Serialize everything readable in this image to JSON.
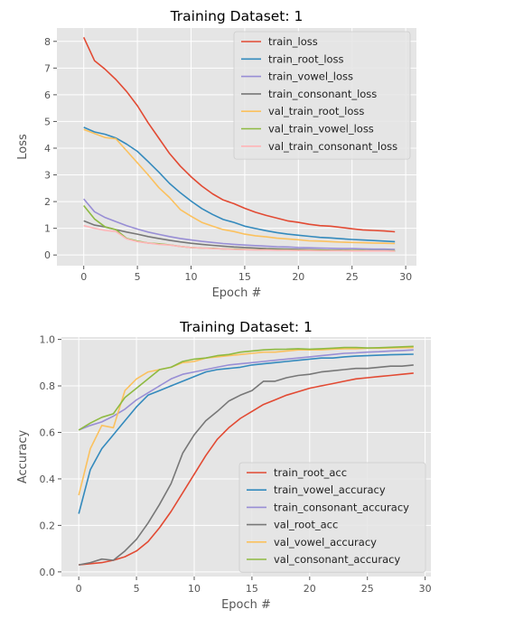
{
  "chart_data": [
    {
      "type": "line",
      "title": "Training Dataset: 1",
      "xlabel": "Epoch #",
      "ylabel": "Loss",
      "xlim": [
        -2.5,
        31
      ],
      "ylim": [
        -0.4,
        8.5
      ],
      "xticks": [
        0,
        5,
        10,
        15,
        20,
        25,
        30
      ],
      "yticks": [
        0,
        1,
        2,
        3,
        4,
        5,
        6,
        7,
        8
      ],
      "grid": true,
      "legend_position": "top-right",
      "x": [
        0,
        1,
        2,
        3,
        4,
        5,
        6,
        7,
        8,
        9,
        10,
        11,
        12,
        13,
        14,
        15,
        16,
        17,
        18,
        19,
        20,
        21,
        22,
        23,
        24,
        25,
        26,
        27,
        28,
        29
      ],
      "series": [
        {
          "name": "train_loss",
          "color": "#E24A33",
          "values": [
            8.15,
            7.28,
            6.95,
            6.57,
            6.12,
            5.59,
            4.95,
            4.37,
            3.8,
            3.33,
            2.93,
            2.58,
            2.29,
            2.06,
            1.92,
            1.75,
            1.6,
            1.48,
            1.38,
            1.28,
            1.22,
            1.15,
            1.1,
            1.08,
            1.03,
            0.98,
            0.94,
            0.92,
            0.9,
            0.87
          ]
        },
        {
          "name": "train_root_loss",
          "color": "#348ABD",
          "values": [
            4.78,
            4.61,
            4.52,
            4.38,
            4.15,
            3.88,
            3.5,
            3.1,
            2.68,
            2.33,
            2.02,
            1.74,
            1.52,
            1.33,
            1.22,
            1.08,
            0.99,
            0.91,
            0.84,
            0.78,
            0.74,
            0.7,
            0.66,
            0.64,
            0.61,
            0.58,
            0.56,
            0.54,
            0.52,
            0.5
          ]
        },
        {
          "name": "train_vowel_loss",
          "color": "#988ED5",
          "values": [
            2.1,
            1.62,
            1.4,
            1.25,
            1.1,
            0.97,
            0.86,
            0.77,
            0.69,
            0.62,
            0.56,
            0.51,
            0.47,
            0.43,
            0.4,
            0.37,
            0.35,
            0.33,
            0.31,
            0.3,
            0.28,
            0.27,
            0.26,
            0.25,
            0.24,
            0.24,
            0.23,
            0.22,
            0.22,
            0.21
          ]
        },
        {
          "name": "train_consonant_loss",
          "color": "#777777",
          "values": [
            1.28,
            1.12,
            1.05,
            0.95,
            0.86,
            0.78,
            0.69,
            0.62,
            0.55,
            0.49,
            0.44,
            0.4,
            0.36,
            0.33,
            0.3,
            0.28,
            0.26,
            0.24,
            0.23,
            0.22,
            0.21,
            0.2,
            0.19,
            0.18,
            0.18,
            0.17,
            0.17,
            0.16,
            0.16,
            0.15
          ]
        },
        {
          "name": "val_train_root_loss",
          "color": "#FBC15E",
          "values": [
            4.7,
            4.55,
            4.4,
            4.35,
            3.9,
            3.45,
            3.0,
            2.52,
            2.15,
            1.7,
            1.45,
            1.22,
            1.08,
            0.95,
            0.88,
            0.78,
            0.72,
            0.68,
            0.63,
            0.6,
            0.57,
            0.53,
            0.52,
            0.5,
            0.48,
            0.47,
            0.46,
            0.45,
            0.44,
            0.43
          ]
        },
        {
          "name": "val_train_vowel_loss",
          "color": "#8EBA42",
          "values": [
            1.85,
            1.35,
            1.05,
            0.95,
            0.62,
            0.52,
            0.45,
            0.42,
            0.38,
            0.32,
            0.28,
            0.26,
            0.25,
            0.23,
            0.22,
            0.21,
            0.2,
            0.2,
            0.19,
            0.19,
            0.18,
            0.18,
            0.18,
            0.17,
            0.17,
            0.17,
            0.17,
            0.16,
            0.16,
            0.16
          ]
        },
        {
          "name": "val_train_consonant_loss",
          "color": "#FFB5B8",
          "values": [
            1.1,
            1.0,
            0.92,
            0.88,
            0.6,
            0.5,
            0.45,
            0.4,
            0.37,
            0.32,
            0.28,
            0.26,
            0.24,
            0.23,
            0.21,
            0.2,
            0.19,
            0.19,
            0.18,
            0.18,
            0.17,
            0.17,
            0.16,
            0.16,
            0.16,
            0.15,
            0.15,
            0.15,
            0.15,
            0.14
          ]
        }
      ]
    },
    {
      "type": "line",
      "title": "Training Dataset: 1",
      "xlabel": "Epoch #",
      "ylabel": "Accuracy",
      "xlim": [
        -1.5,
        30.5
      ],
      "ylim": [
        -0.02,
        1.01
      ],
      "xticks": [
        0,
        5,
        10,
        15,
        20,
        25,
        30
      ],
      "yticks": [
        0.0,
        0.2,
        0.4,
        0.6,
        0.8,
        1.0
      ],
      "ytick_labels": [
        "0.0",
        "0.2",
        "0.4",
        "0.6",
        "0.8",
        "1.0"
      ],
      "grid": true,
      "legend_position": "bottom-right",
      "x": [
        0,
        1,
        2,
        3,
        4,
        5,
        6,
        7,
        8,
        9,
        10,
        11,
        12,
        13,
        14,
        15,
        16,
        17,
        18,
        19,
        20,
        21,
        22,
        23,
        24,
        25,
        26,
        27,
        28,
        29
      ],
      "series": [
        {
          "name": "train_root_acc",
          "color": "#E24A33",
          "values": [
            0.03,
            0.035,
            0.04,
            0.05,
            0.065,
            0.09,
            0.13,
            0.19,
            0.26,
            0.34,
            0.42,
            0.5,
            0.57,
            0.62,
            0.66,
            0.69,
            0.72,
            0.74,
            0.76,
            0.775,
            0.79,
            0.8,
            0.81,
            0.82,
            0.83,
            0.835,
            0.84,
            0.845,
            0.85,
            0.855
          ]
        },
        {
          "name": "train_vowel_accuracy",
          "color": "#348ABD",
          "values": [
            0.25,
            0.44,
            0.53,
            0.59,
            0.65,
            0.71,
            0.76,
            0.78,
            0.8,
            0.82,
            0.84,
            0.86,
            0.87,
            0.875,
            0.88,
            0.89,
            0.895,
            0.9,
            0.905,
            0.91,
            0.915,
            0.92,
            0.92,
            0.925,
            0.928,
            0.93,
            0.932,
            0.934,
            0.935,
            0.936
          ]
        },
        {
          "name": "train_consonant_accuracy",
          "color": "#988ED5",
          "values": [
            0.61,
            0.63,
            0.645,
            0.67,
            0.7,
            0.74,
            0.77,
            0.8,
            0.83,
            0.85,
            0.86,
            0.87,
            0.88,
            0.89,
            0.895,
            0.9,
            0.905,
            0.91,
            0.915,
            0.92,
            0.925,
            0.93,
            0.935,
            0.94,
            0.942,
            0.945,
            0.947,
            0.95,
            0.952,
            0.955
          ]
        },
        {
          "name": "val_root_acc",
          "color": "#777777",
          "values": [
            0.03,
            0.04,
            0.055,
            0.05,
            0.09,
            0.14,
            0.21,
            0.29,
            0.38,
            0.51,
            0.59,
            0.65,
            0.69,
            0.735,
            0.76,
            0.78,
            0.82,
            0.82,
            0.835,
            0.845,
            0.85,
            0.86,
            0.865,
            0.87,
            0.875,
            0.875,
            0.88,
            0.885,
            0.885,
            0.89
          ]
        },
        {
          "name": "val_vowel_accuracy",
          "color": "#FBC15E",
          "values": [
            0.33,
            0.53,
            0.63,
            0.62,
            0.78,
            0.83,
            0.86,
            0.87,
            0.88,
            0.9,
            0.905,
            0.92,
            0.925,
            0.93,
            0.935,
            0.94,
            0.945,
            0.945,
            0.95,
            0.955,
            0.955,
            0.955,
            0.958,
            0.96,
            0.96,
            0.962,
            0.962,
            0.963,
            0.964,
            0.965
          ]
        },
        {
          "name": "val_consonant_accuracy",
          "color": "#8EBA42",
          "values": [
            0.61,
            0.64,
            0.665,
            0.68,
            0.75,
            0.79,
            0.83,
            0.87,
            0.88,
            0.905,
            0.915,
            0.92,
            0.93,
            0.935,
            0.945,
            0.95,
            0.955,
            0.957,
            0.958,
            0.96,
            0.958,
            0.96,
            0.962,
            0.965,
            0.965,
            0.963,
            0.964,
            0.966,
            0.968,
            0.97
          ]
        }
      ]
    }
  ]
}
